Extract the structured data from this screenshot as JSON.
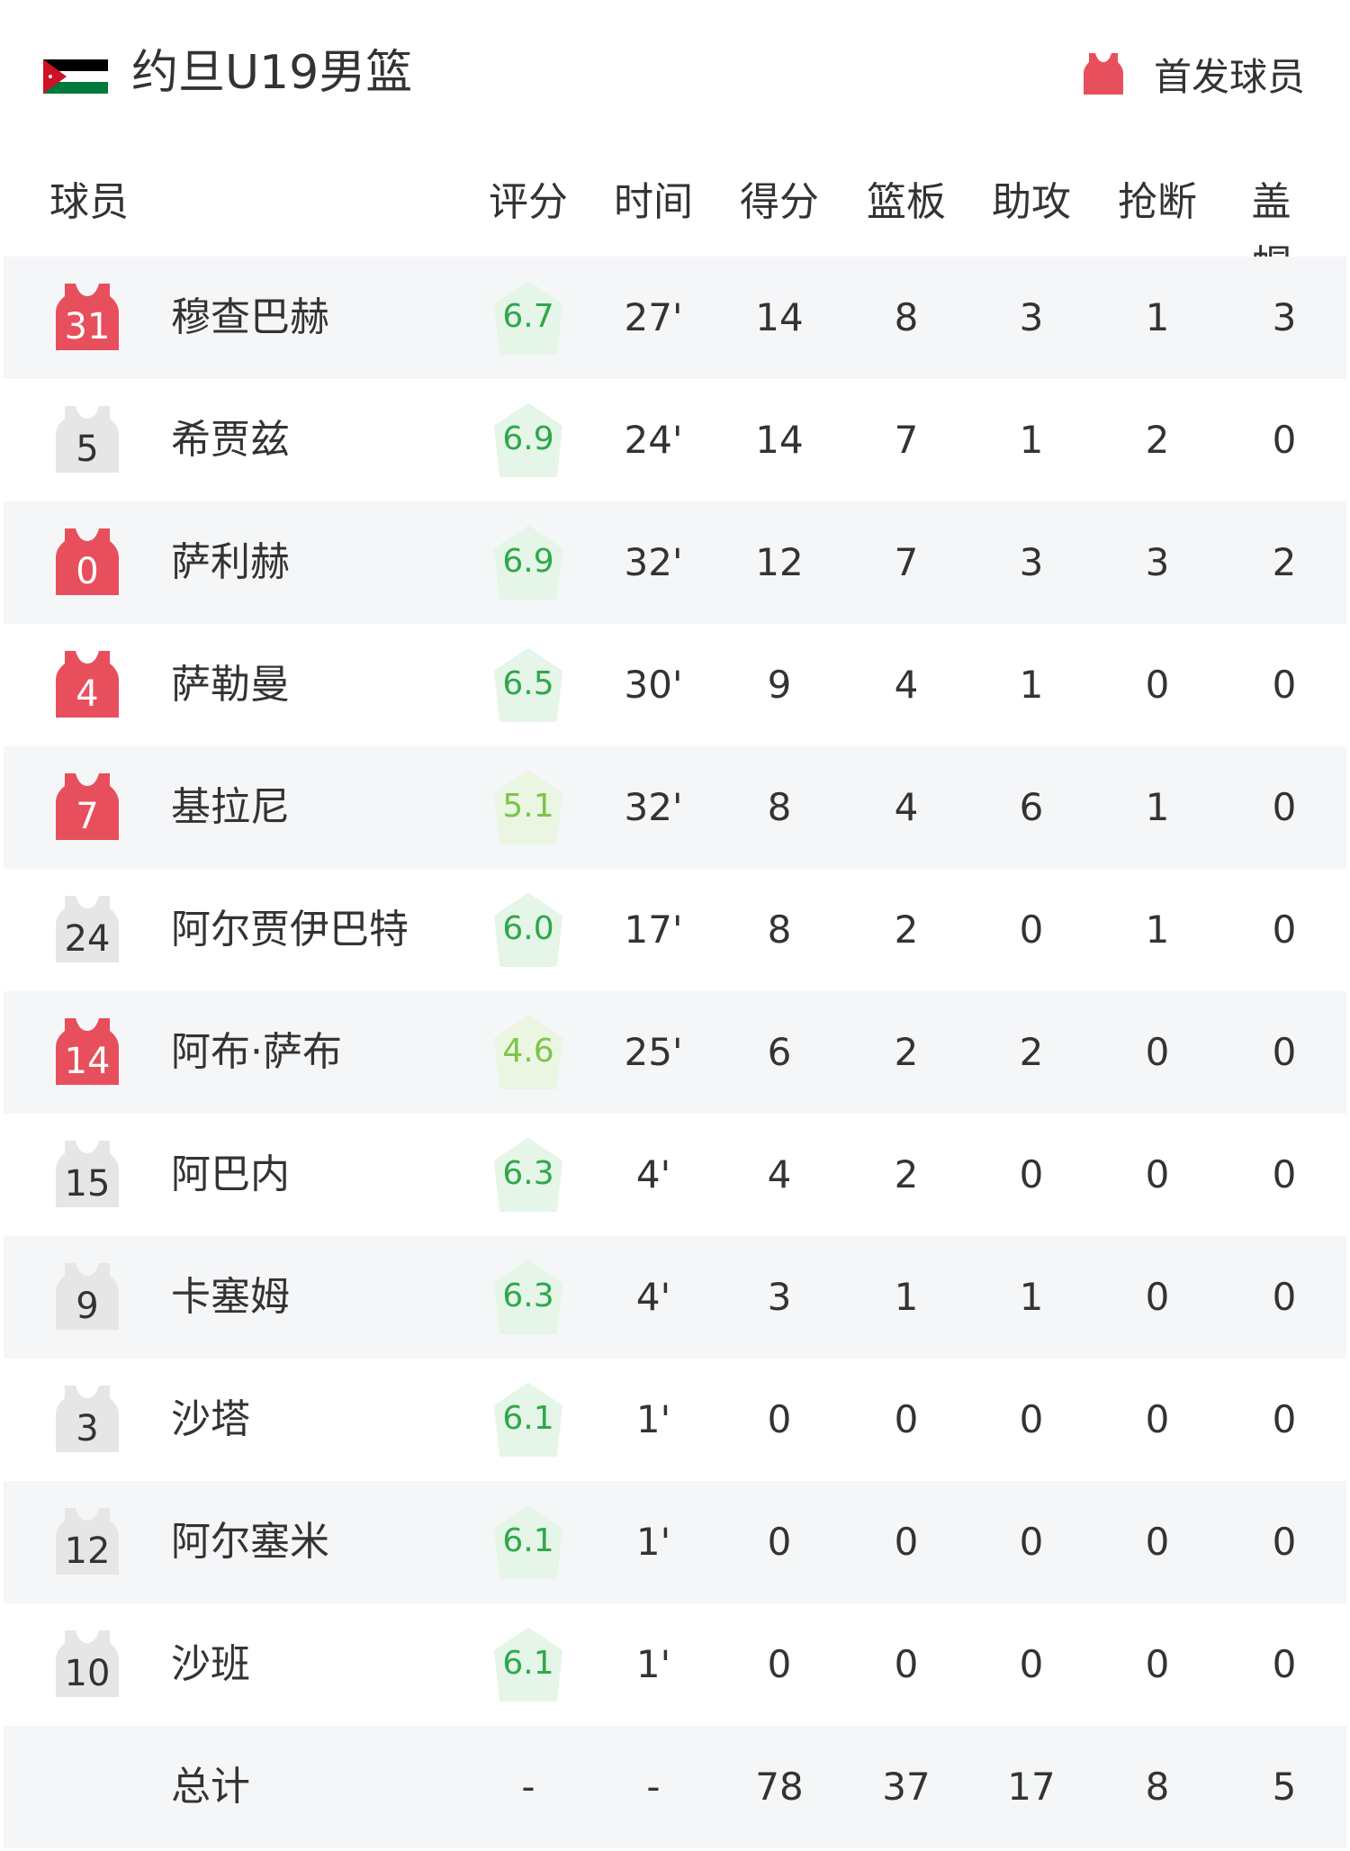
{
  "header": {
    "title": "约旦U19男篮",
    "flag_icon": "jordan-flag-icon",
    "legend_label": "首发球员"
  },
  "colors": {
    "starter": "#e84f5c",
    "bench": "#e6e6e6",
    "rating_text": "#2ea84a",
    "rating_bg": "#e5f5e8",
    "stripe": "#f5f6f8"
  },
  "columns": {
    "player": "球员",
    "rating": "评分",
    "time": "时间",
    "points": "得分",
    "rebounds": "篮板",
    "assists": "助攻",
    "steals": "抢断",
    "blocks": "盖帽"
  },
  "players": [
    {
      "number": "31",
      "name": "穆查巴赫",
      "starter": true,
      "rating": "6.7",
      "time": "27'",
      "points": "14",
      "rebounds": "8",
      "assists": "3",
      "steals": "1",
      "blocks": "3"
    },
    {
      "number": "5",
      "name": "希贾兹",
      "starter": false,
      "rating": "6.9",
      "time": "24'",
      "points": "14",
      "rebounds": "7",
      "assists": "1",
      "steals": "2",
      "blocks": "0"
    },
    {
      "number": "0",
      "name": "萨利赫",
      "starter": true,
      "rating": "6.9",
      "time": "32'",
      "points": "12",
      "rebounds": "7",
      "assists": "3",
      "steals": "3",
      "blocks": "2"
    },
    {
      "number": "4",
      "name": "萨勒曼",
      "starter": true,
      "rating": "6.5",
      "time": "30'",
      "points": "9",
      "rebounds": "4",
      "assists": "1",
      "steals": "0",
      "blocks": "0"
    },
    {
      "number": "7",
      "name": "基拉尼",
      "starter": true,
      "rating": "5.1",
      "time": "32'",
      "points": "8",
      "rebounds": "4",
      "assists": "6",
      "steals": "1",
      "blocks": "0"
    },
    {
      "number": "24",
      "name": "阿尔贾伊巴特",
      "starter": false,
      "rating": "6.0",
      "time": "17'",
      "points": "8",
      "rebounds": "2",
      "assists": "0",
      "steals": "1",
      "blocks": "0"
    },
    {
      "number": "14",
      "name": "阿布·萨布",
      "starter": true,
      "rating": "4.6",
      "time": "25'",
      "points": "6",
      "rebounds": "2",
      "assists": "2",
      "steals": "0",
      "blocks": "0"
    },
    {
      "number": "15",
      "name": "阿巴内",
      "starter": false,
      "rating": "6.3",
      "time": "4'",
      "points": "4",
      "rebounds": "2",
      "assists": "0",
      "steals": "0",
      "blocks": "0"
    },
    {
      "number": "9",
      "name": "卡塞姆",
      "starter": false,
      "rating": "6.3",
      "time": "4'",
      "points": "3",
      "rebounds": "1",
      "assists": "1",
      "steals": "0",
      "blocks": "0"
    },
    {
      "number": "3",
      "name": "沙塔",
      "starter": false,
      "rating": "6.1",
      "time": "1'",
      "points": "0",
      "rebounds": "0",
      "assists": "0",
      "steals": "0",
      "blocks": "0"
    },
    {
      "number": "12",
      "name": "阿尔塞米",
      "starter": false,
      "rating": "6.1",
      "time": "1'",
      "points": "0",
      "rebounds": "0",
      "assists": "0",
      "steals": "0",
      "blocks": "0"
    },
    {
      "number": "10",
      "name": "沙班",
      "starter": false,
      "rating": "6.1",
      "time": "1'",
      "points": "0",
      "rebounds": "0",
      "assists": "0",
      "steals": "0",
      "blocks": "0"
    }
  ],
  "totals": {
    "label": "总计",
    "rating": "-",
    "time": "-",
    "points": "78",
    "rebounds": "37",
    "assists": "17",
    "steals": "8",
    "blocks": "5"
  }
}
